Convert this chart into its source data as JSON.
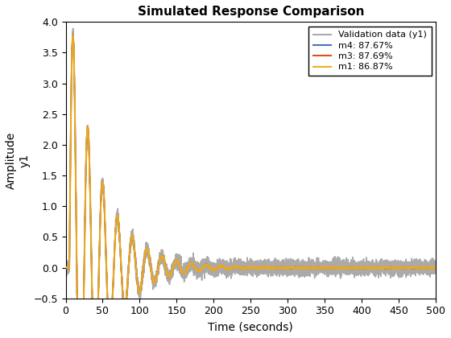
{
  "title": "Simulated Response Comparison",
  "xlabel": "Time (seconds)",
  "ylabel_line1": "Amplitude",
  "ylabel_line2": "y1",
  "xlim": [
    0,
    500
  ],
  "ylim": [
    -0.5,
    4
  ],
  "yticks": [
    -0.5,
    0,
    0.5,
    1.0,
    1.5,
    2.0,
    2.5,
    3.0,
    3.5,
    4.0
  ],
  "xticks": [
    0,
    50,
    100,
    150,
    200,
    250,
    300,
    350,
    400,
    450,
    500
  ],
  "legend_entries": [
    {
      "label": "Validation data (y1)",
      "color": "#aaaaaa",
      "lw": 1.2
    },
    {
      "label": "m4: 87.67%",
      "color": "#4472C4",
      "lw": 1.2
    },
    {
      "label": "m3: 87.69%",
      "color": "#D95319",
      "lw": 1.2
    },
    {
      "label": "m1: 86.87%",
      "color": "#EDB120",
      "lw": 1.5
    }
  ],
  "background_color": "#ffffff",
  "title_fontsize": 11,
  "axis_fontsize": 10,
  "tick_fontsize": 9,
  "t_peak": 50,
  "peak_amp": 3.78,
  "alpha": 0.0095,
  "omega": 0.195,
  "noise_amp": 0.055
}
